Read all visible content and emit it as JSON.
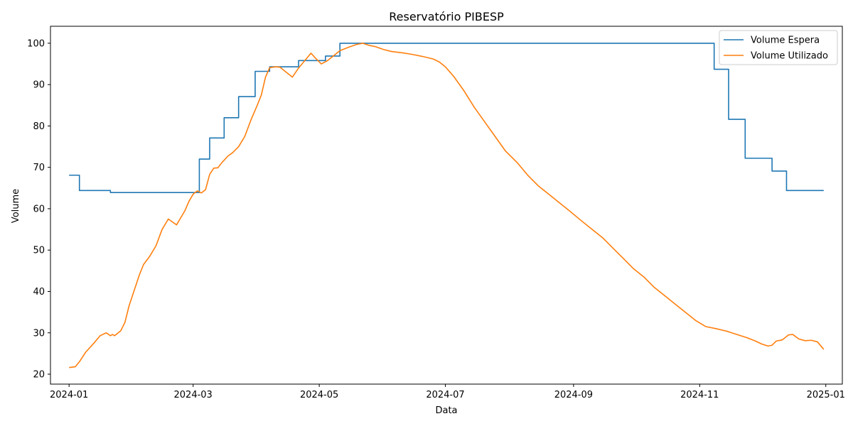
{
  "chart_data": {
    "type": "line",
    "title": "Reservatório PIBESP",
    "xlabel": "Data",
    "ylabel": "Volume",
    "xlim": [
      "2023-12-23",
      "2025-01-09"
    ],
    "ylim": [
      17.6,
      104.1
    ],
    "xticks": [
      {
        "date": "2024-01-01",
        "label": "2024-01"
      },
      {
        "date": "2024-03-01",
        "label": "2024-03"
      },
      {
        "date": "2024-05-01",
        "label": "2024-05"
      },
      {
        "date": "2024-07-01",
        "label": "2024-07"
      },
      {
        "date": "2024-09-01",
        "label": "2024-09"
      },
      {
        "date": "2024-11-01",
        "label": "2024-11"
      },
      {
        "date": "2025-01-01",
        "label": "2025-01"
      }
    ],
    "yticks": [
      20,
      30,
      40,
      50,
      60,
      70,
      80,
      90,
      100
    ],
    "legend_position": "top-right",
    "grid": false,
    "series": [
      {
        "name": "Volume Espera",
        "color": "#1f77b4",
        "step": true,
        "points": [
          [
            "2024-01-01",
            68.1
          ],
          [
            "2024-01-06",
            64.4
          ],
          [
            "2024-01-21",
            63.9
          ],
          [
            "2024-03-04",
            72.0
          ],
          [
            "2024-03-09",
            77.1
          ],
          [
            "2024-03-16",
            82.0
          ],
          [
            "2024-03-23",
            87.1
          ],
          [
            "2024-03-31",
            93.2
          ],
          [
            "2024-04-07",
            94.3
          ],
          [
            "2024-04-21",
            95.8
          ],
          [
            "2024-05-04",
            96.9
          ],
          [
            "2024-05-11",
            100.0
          ],
          [
            "2024-11-08",
            93.7
          ],
          [
            "2024-11-15",
            81.6
          ],
          [
            "2024-11-23",
            72.2
          ],
          [
            "2024-12-06",
            69.1
          ],
          [
            "2024-12-13",
            64.4
          ],
          [
            "2024-12-31",
            64.4
          ]
        ]
      },
      {
        "name": "Volume Utilizado",
        "color": "#ff7f0e",
        "step": false,
        "points": [
          [
            "2024-01-01",
            21.6
          ],
          [
            "2024-01-04",
            21.8
          ],
          [
            "2024-01-06",
            23.0
          ],
          [
            "2024-01-09",
            25.3
          ],
          [
            "2024-01-13",
            27.5
          ],
          [
            "2024-01-16",
            29.3
          ],
          [
            "2024-01-19",
            30.0
          ],
          [
            "2024-01-21",
            29.3
          ],
          [
            "2024-01-22",
            29.6
          ],
          [
            "2024-01-23",
            29.3
          ],
          [
            "2024-01-26",
            30.5
          ],
          [
            "2024-01-28",
            32.5
          ],
          [
            "2024-01-30",
            36.5
          ],
          [
            "2024-02-02",
            41.0
          ],
          [
            "2024-02-04",
            44.0
          ],
          [
            "2024-02-06",
            46.5
          ],
          [
            "2024-02-09",
            48.5
          ],
          [
            "2024-02-12",
            51.0
          ],
          [
            "2024-02-15",
            55.0
          ],
          [
            "2024-02-18",
            57.5
          ],
          [
            "2024-02-20",
            56.8
          ],
          [
            "2024-02-22",
            56.1
          ],
          [
            "2024-02-24",
            57.8
          ],
          [
            "2024-02-26",
            59.5
          ],
          [
            "2024-02-28",
            61.8
          ],
          [
            "2024-03-01",
            63.5
          ],
          [
            "2024-03-03",
            64.3
          ],
          [
            "2024-03-05",
            63.8
          ],
          [
            "2024-03-07",
            64.6
          ],
          [
            "2024-03-09",
            68.3
          ],
          [
            "2024-03-11",
            69.8
          ],
          [
            "2024-03-13",
            69.9
          ],
          [
            "2024-03-15",
            71.2
          ],
          [
            "2024-03-18",
            72.8
          ],
          [
            "2024-03-20",
            73.5
          ],
          [
            "2024-03-23",
            75.0
          ],
          [
            "2024-03-26",
            77.5
          ],
          [
            "2024-03-29",
            81.5
          ],
          [
            "2024-04-01",
            85.0
          ],
          [
            "2024-04-03",
            87.5
          ],
          [
            "2024-04-05",
            91.8
          ],
          [
            "2024-04-07",
            94.1
          ],
          [
            "2024-04-10",
            94.3
          ],
          [
            "2024-04-12",
            94.2
          ],
          [
            "2024-04-15",
            93.0
          ],
          [
            "2024-04-18",
            91.8
          ],
          [
            "2024-04-21",
            94.0
          ],
          [
            "2024-04-24",
            95.8
          ],
          [
            "2024-04-27",
            97.6
          ],
          [
            "2024-04-29",
            96.5
          ],
          [
            "2024-05-02",
            95.0
          ],
          [
            "2024-05-05",
            95.8
          ],
          [
            "2024-05-08",
            97.0
          ],
          [
            "2024-05-11",
            98.2
          ],
          [
            "2024-05-15",
            99.0
          ],
          [
            "2024-05-19",
            99.7
          ],
          [
            "2024-05-22",
            100.0
          ],
          [
            "2024-05-25",
            99.5
          ],
          [
            "2024-05-28",
            99.2
          ],
          [
            "2024-06-01",
            98.5
          ],
          [
            "2024-06-05",
            98.0
          ],
          [
            "2024-06-10",
            97.7
          ],
          [
            "2024-06-15",
            97.3
          ],
          [
            "2024-06-20",
            96.8
          ],
          [
            "2024-06-25",
            96.2
          ],
          [
            "2024-06-28",
            95.5
          ],
          [
            "2024-07-01",
            94.3
          ],
          [
            "2024-07-05",
            92.0
          ],
          [
            "2024-07-10",
            88.5
          ],
          [
            "2024-07-15",
            84.5
          ],
          [
            "2024-07-20",
            81.0
          ],
          [
            "2024-07-25",
            77.5
          ],
          [
            "2024-07-30",
            74.0
          ],
          [
            "2024-08-05",
            71.0
          ],
          [
            "2024-08-10",
            68.0
          ],
          [
            "2024-08-15",
            65.5
          ],
          [
            "2024-08-20",
            63.5
          ],
          [
            "2024-08-25",
            61.5
          ],
          [
            "2024-08-30",
            59.5
          ],
          [
            "2024-09-05",
            57.0
          ],
          [
            "2024-09-10",
            55.0
          ],
          [
            "2024-09-15",
            53.0
          ],
          [
            "2024-09-20",
            50.5
          ],
          [
            "2024-09-25",
            48.0
          ],
          [
            "2024-09-30",
            45.5
          ],
          [
            "2024-10-05",
            43.5
          ],
          [
            "2024-10-10",
            41.0
          ],
          [
            "2024-10-15",
            39.0
          ],
          [
            "2024-10-20",
            37.0
          ],
          [
            "2024-10-25",
            35.0
          ],
          [
            "2024-10-30",
            33.0
          ],
          [
            "2024-11-04",
            31.5
          ],
          [
            "2024-11-09",
            31.0
          ],
          [
            "2024-11-14",
            30.4
          ],
          [
            "2024-11-19",
            29.6
          ],
          [
            "2024-11-24",
            28.8
          ],
          [
            "2024-11-28",
            28.0
          ],
          [
            "2024-12-01",
            27.3
          ],
          [
            "2024-12-04",
            26.8
          ],
          [
            "2024-12-06",
            27.0
          ],
          [
            "2024-12-08",
            28.0
          ],
          [
            "2024-12-11",
            28.3
          ],
          [
            "2024-12-14",
            29.5
          ],
          [
            "2024-12-16",
            29.6
          ],
          [
            "2024-12-19",
            28.5
          ],
          [
            "2024-12-22",
            28.1
          ],
          [
            "2024-12-25",
            28.2
          ],
          [
            "2024-12-28",
            27.8
          ],
          [
            "2024-12-31",
            26.0
          ]
        ]
      }
    ]
  }
}
